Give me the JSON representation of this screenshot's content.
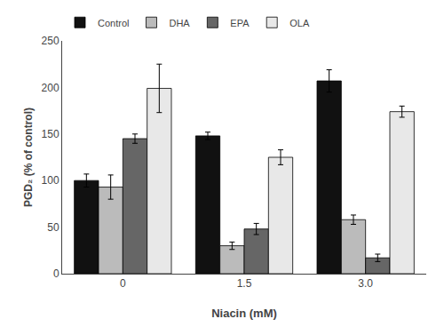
{
  "chart_data": {
    "type": "bar",
    "xlabel": "Niacin (mM)",
    "ylabel": "PGD₂ (% of control)",
    "categories": [
      "0",
      "1.5",
      "3.0"
    ],
    "series": [
      {
        "name": "Control",
        "color": "#111111",
        "values": [
          100,
          148,
          207
        ],
        "errors": [
          7,
          4,
          12
        ]
      },
      {
        "name": "DHA",
        "color": "#bbbbbb",
        "values": [
          93,
          30,
          58
        ],
        "errors": [
          13,
          4,
          5
        ]
      },
      {
        "name": "EPA",
        "color": "#666666",
        "values": [
          145,
          48,
          17
        ],
        "errors": [
          5,
          6,
          4
        ]
      },
      {
        "name": "OLA",
        "color": "#e8e8e8",
        "values": [
          199,
          125,
          174
        ],
        "errors": [
          26,
          8,
          6
        ]
      }
    ],
    "ylim": [
      0,
      250
    ],
    "yticks": [
      0,
      50,
      100,
      150,
      200,
      250
    ],
    "grid": false,
    "legend": "upper left"
  }
}
